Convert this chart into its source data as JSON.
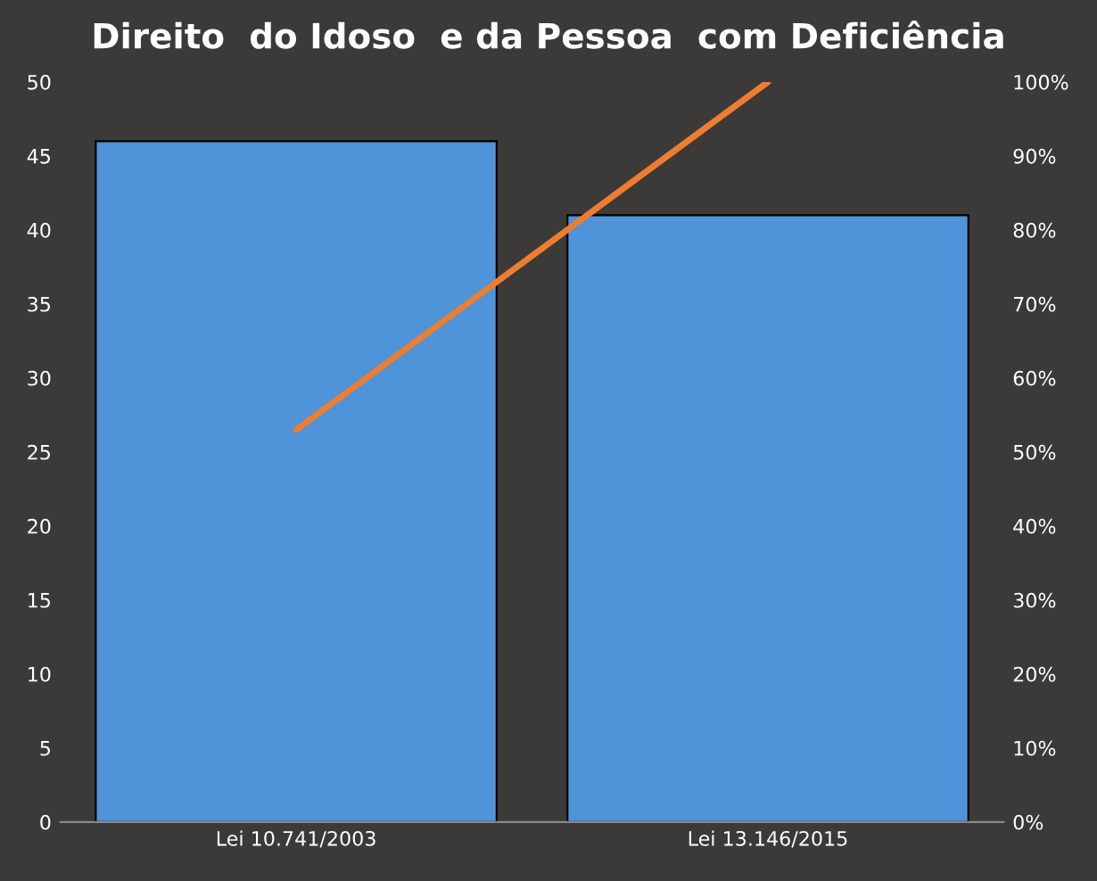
{
  "chart_data": {
    "type": "bar",
    "title": "Direito  do Idoso  e da Pessoa  com Deficiência",
    "categories": [
      "Lei 10.741/2003",
      "Lei 13.146/2015"
    ],
    "series": [
      {
        "color": "#4f93d8",
        "values": [
          46,
          41
        ]
      },
      {
        "type": "line",
        "color": "#ed7d31",
        "axis": "y2",
        "values": [
          53,
          100
        ]
      }
    ],
    "ylim": [
      0,
      50
    ],
    "yticks": [
      0,
      5,
      10,
      15,
      20,
      25,
      30,
      35,
      40,
      45,
      50
    ],
    "y2lim": [
      0,
      100
    ],
    "y2ticks": [
      {
        "value": 0,
        "label": "0%"
      },
      {
        "value": 10,
        "label": "10%"
      },
      {
        "value": 20,
        "label": "20%"
      },
      {
        "value": 30,
        "label": "30%"
      },
      {
        "value": 40,
        "label": "40%"
      },
      {
        "value": 50,
        "label": "50%"
      },
      {
        "value": 60,
        "label": "60%"
      },
      {
        "value": 70,
        "label": "70%"
      },
      {
        "value": 80,
        "label": "80%"
      },
      {
        "value": 90,
        "label": "90%"
      },
      {
        "value": 100,
        "label": "100%"
      }
    ],
    "grid": false,
    "marker": "none",
    "line_style": "solid"
  }
}
